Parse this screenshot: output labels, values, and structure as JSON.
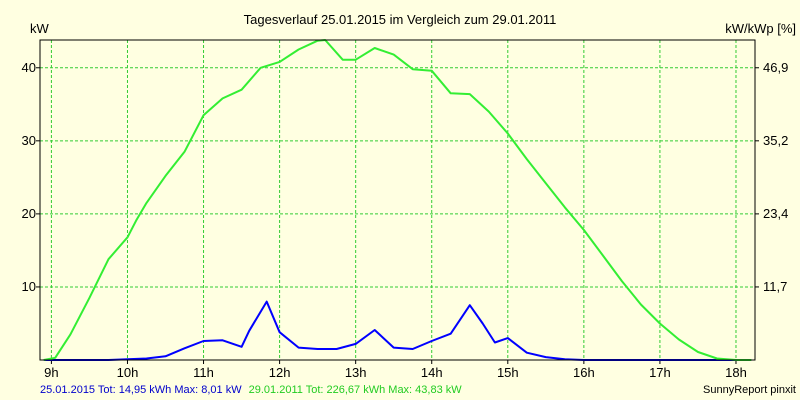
{
  "chart_data": {
    "type": "line",
    "title": "Tagesverlauf 25.01.2015 im Vergleich zum 29.01.2011",
    "ylabel_left": "kW",
    "ylabel_right": "kW/kWp [%]",
    "x_ticks": [
      9,
      10,
      11,
      12,
      13,
      14,
      15,
      16,
      17,
      18
    ],
    "x_tick_labels": [
      "9h",
      "10h",
      "11h",
      "12h",
      "13h",
      "14h",
      "15h",
      "16h",
      "17h",
      "18h"
    ],
    "xlim": [
      8.85,
      18.25
    ],
    "ylim": [
      0,
      43.8
    ],
    "y_ticks_left": [
      10,
      20,
      30,
      40
    ],
    "y_ticks_right": [
      {
        "value": 10,
        "label": "11,7"
      },
      {
        "value": 20,
        "label": "23,4"
      },
      {
        "value": 30,
        "label": "35,2"
      },
      {
        "value": 40,
        "label": "46,9"
      }
    ],
    "grid": true,
    "series": [
      {
        "name": "25.01.2015",
        "color": "#0000ff",
        "x": [
          8.9,
          9.0,
          9.25,
          9.5,
          9.75,
          10.0,
          10.25,
          10.5,
          10.75,
          11.0,
          11.25,
          11.5,
          11.6,
          11.83,
          12.0,
          12.25,
          12.5,
          12.75,
          13.0,
          13.25,
          13.5,
          13.75,
          14.0,
          14.25,
          14.5,
          14.67,
          14.83,
          15.0,
          15.25,
          15.5,
          15.75,
          16.0,
          16.5,
          17.0,
          17.5,
          18.0,
          18.2
        ],
        "y": [
          0,
          0,
          0,
          0,
          0,
          0.1,
          0.2,
          0.5,
          1.6,
          2.6,
          2.7,
          1.8,
          4.0,
          8.0,
          3.8,
          1.7,
          1.5,
          1.5,
          2.2,
          4.1,
          1.7,
          1.5,
          2.6,
          3.6,
          7.5,
          5.0,
          2.4,
          3.0,
          1.0,
          0.4,
          0.1,
          0,
          0,
          0,
          0,
          0,
          0
        ]
      },
      {
        "name": "29.01.2011",
        "color": "#33ee33",
        "x": [
          8.9,
          9.05,
          9.25,
          9.5,
          9.75,
          10.0,
          10.12,
          10.25,
          10.5,
          10.75,
          11.0,
          11.25,
          11.5,
          11.75,
          12.0,
          12.25,
          12.5,
          12.6,
          12.83,
          13.0,
          13.25,
          13.5,
          13.75,
          14.0,
          14.25,
          14.5,
          14.75,
          15.0,
          15.25,
          15.5,
          15.75,
          16.0,
          16.25,
          16.5,
          16.75,
          17.0,
          17.25,
          17.5,
          17.75,
          18.0,
          18.2
        ],
        "y": [
          0,
          0.3,
          3.5,
          8.5,
          13.8,
          16.8,
          19.2,
          21.5,
          25.2,
          28.5,
          33.5,
          35.8,
          37.0,
          40.0,
          40.8,
          42.5,
          43.7,
          43.8,
          41.1,
          41.1,
          42.7,
          41.8,
          39.8,
          39.6,
          36.5,
          36.4,
          34.0,
          31.0,
          27.5,
          24.2,
          20.9,
          17.8,
          14.3,
          10.8,
          7.6,
          5.0,
          2.8,
          1.1,
          0.2,
          0,
          0
        ]
      }
    ]
  },
  "footer": {
    "series1": "25.01.2015 Tot: 14,95 kWh Max: 8,01 kW",
    "series2": "29.01.2011 Tot: 226,67 kWh Max: 43,83 kW",
    "credit": "SunnyReport pinxit"
  },
  "colors": {
    "background": "#ffffe1",
    "grid": "#33cc33",
    "axis": "#000000",
    "series1": "#0000ff",
    "series2": "#33ee33",
    "footer1": "#0000cc",
    "footer2": "#22cc22"
  }
}
